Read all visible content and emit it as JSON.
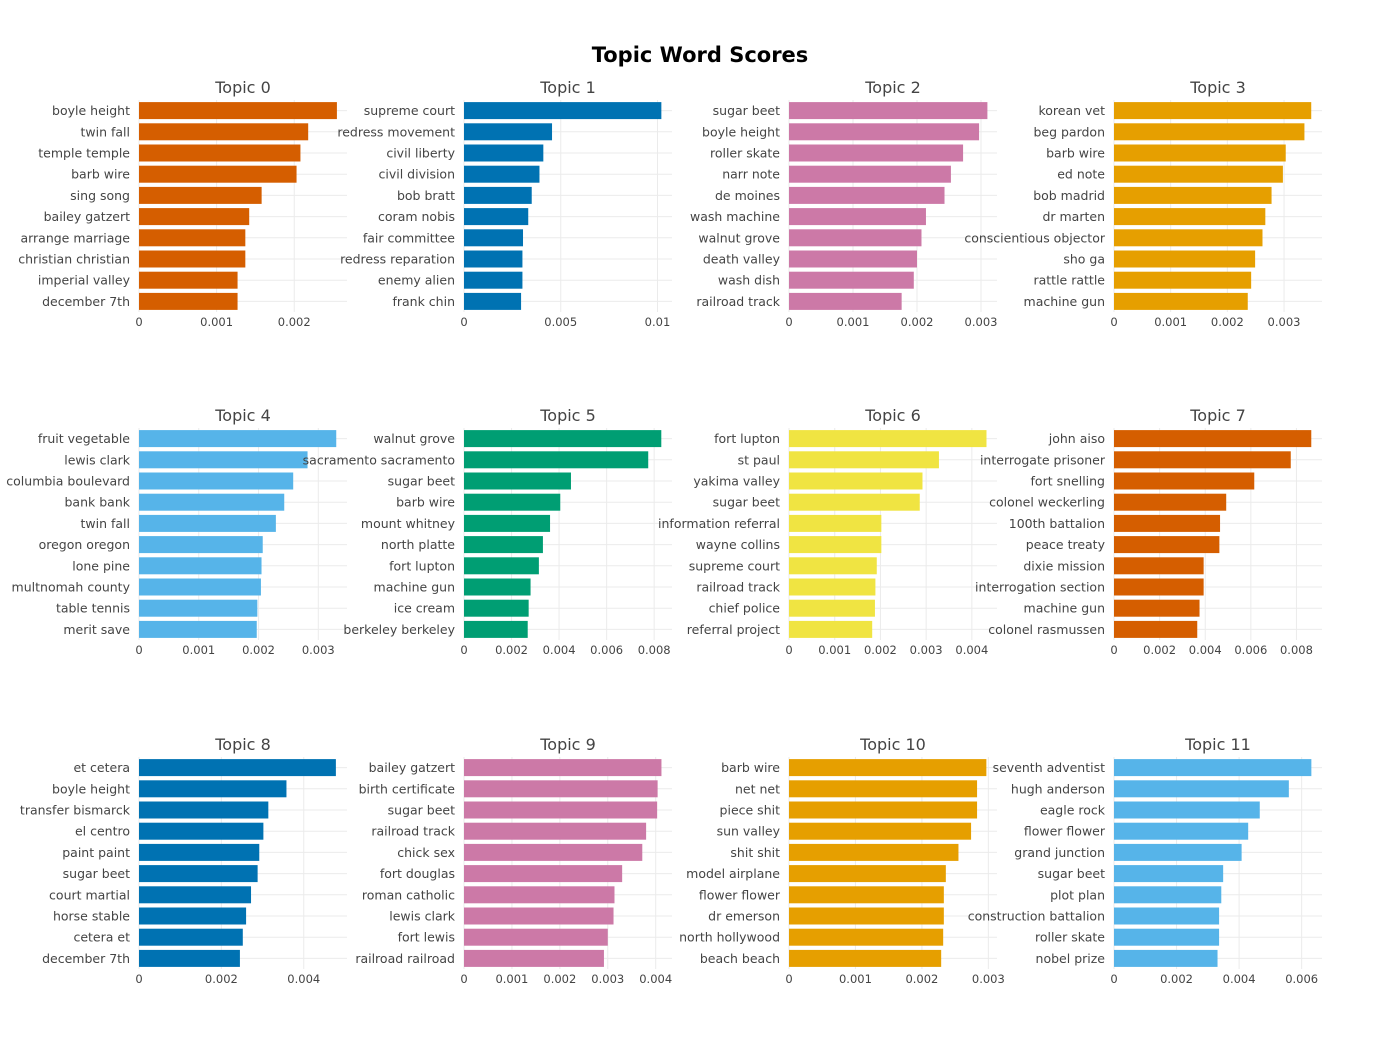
{
  "title": "Topic Word Scores",
  "chart_data": [
    {
      "type": "bar",
      "orientation": "horizontal",
      "title": "Topic 0",
      "color": "#D55E00",
      "categories": [
        "boyle height",
        "twin fall",
        "temple temple",
        "barb wire",
        "sing song",
        "bailey gatzert",
        "arrange marriage",
        "christian christian",
        "imperial valley",
        "december 7th"
      ],
      "values": [
        0.00255,
        0.00218,
        0.00208,
        0.00203,
        0.00158,
        0.00142,
        0.00137,
        0.00137,
        0.00127,
        0.00127
      ],
      "xlim": [
        0,
        0.00268
      ],
      "ticks": [
        0,
        0.001,
        0.002
      ],
      "tick_labels": [
        "0",
        "0.001",
        "0.002"
      ]
    },
    {
      "type": "bar",
      "orientation": "horizontal",
      "title": "Topic 1",
      "color": "#0072B2",
      "categories": [
        "supreme court",
        "redress movement",
        "civil liberty",
        "civil division",
        "bob bratt",
        "coram nobis",
        "fair committee",
        "redress reparation",
        "enemy alien",
        "frank chin"
      ],
      "values": [
        0.0102,
        0.00455,
        0.0041,
        0.0039,
        0.0035,
        0.00332,
        0.00305,
        0.00302,
        0.00302,
        0.00295
      ],
      "xlim": [
        0,
        0.01075
      ],
      "ticks": [
        0,
        0.005,
        0.01
      ],
      "tick_labels": [
        "0",
        "0.005",
        "0.01"
      ]
    },
    {
      "type": "bar",
      "orientation": "horizontal",
      "title": "Topic 2",
      "color": "#CC79A7",
      "categories": [
        "sugar beet",
        "boyle height",
        "roller skate",
        "narr note",
        "de moines",
        "wash machine",
        "walnut grove",
        "death valley",
        "wash dish",
        "railroad track"
      ],
      "values": [
        0.0031,
        0.00297,
        0.00272,
        0.00253,
        0.00243,
        0.00214,
        0.00207,
        0.002,
        0.00195,
        0.00176
      ],
      "xlim": [
        0,
        0.00325
      ],
      "ticks": [
        0,
        0.001,
        0.002,
        0.003
      ],
      "tick_labels": [
        "0",
        "0.001",
        "0.002",
        "0.003"
      ]
    },
    {
      "type": "bar",
      "orientation": "horizontal",
      "title": "Topic 3",
      "color": "#E69F00",
      "categories": [
        "korean vet",
        "beg pardon",
        "barb wire",
        "ed note",
        "bob madrid",
        "dr marten",
        "conscientious objector",
        "sho ga",
        "rattle rattle",
        "machine gun"
      ],
      "values": [
        0.00348,
        0.00336,
        0.00303,
        0.00298,
        0.00278,
        0.00267,
        0.00262,
        0.00249,
        0.00242,
        0.00236
      ],
      "xlim": [
        0,
        0.00367
      ],
      "ticks": [
        0,
        0.001,
        0.002,
        0.003
      ],
      "tick_labels": [
        "0",
        "0.001",
        "0.002",
        "0.003"
      ]
    },
    {
      "type": "bar",
      "orientation": "horizontal",
      "title": "Topic 4",
      "color": "#56B4E9",
      "categories": [
        "fruit vegetable",
        "lewis clark",
        "columbia boulevard",
        "bank bank",
        "twin fall",
        "oregon oregon",
        "lone pine",
        "multnomah county",
        "table tennis",
        "merit save"
      ],
      "values": [
        0.0033,
        0.00282,
        0.00258,
        0.00243,
        0.00229,
        0.00207,
        0.00205,
        0.00204,
        0.00198,
        0.00197
      ],
      "xlim": [
        0,
        0.00348
      ],
      "ticks": [
        0,
        0.001,
        0.002,
        0.003
      ],
      "tick_labels": [
        "0",
        "0.001",
        "0.002",
        "0.003"
      ]
    },
    {
      "type": "bar",
      "orientation": "horizontal",
      "title": "Topic 5",
      "color": "#009E73",
      "categories": [
        "walnut grove",
        "sacramento sacramento",
        "sugar beet",
        "barb wire",
        "mount whitney",
        "north platte",
        "fort lupton",
        "machine gun",
        "ice cream",
        "berkeley berkeley"
      ],
      "values": [
        0.0083,
        0.00775,
        0.0045,
        0.00405,
        0.00362,
        0.00332,
        0.00315,
        0.0028,
        0.00272,
        0.00268
      ],
      "xlim": [
        0,
        0.00875
      ],
      "ticks": [
        0,
        0.002,
        0.004,
        0.006,
        0.008
      ],
      "tick_labels": [
        "0",
        "0.002",
        "0.004",
        "0.006",
        "0.008"
      ]
    },
    {
      "type": "bar",
      "orientation": "horizontal",
      "title": "Topic 6",
      "color": "#F0E442",
      "categories": [
        "fort lupton",
        "st paul",
        "yakima valley",
        "sugar beet",
        "information referral",
        "wayne collins",
        "supreme court",
        "railroad track",
        "chief police",
        "referral project"
      ],
      "values": [
        0.00432,
        0.00328,
        0.00292,
        0.00286,
        0.00202,
        0.00202,
        0.00192,
        0.00189,
        0.00188,
        0.00182
      ],
      "xlim": [
        0,
        0.00455
      ],
      "ticks": [
        0,
        0.001,
        0.002,
        0.003,
        0.004
      ],
      "tick_labels": [
        "0",
        "0.001",
        "0.002",
        "0.003",
        "0.004"
      ]
    },
    {
      "type": "bar",
      "orientation": "horizontal",
      "title": "Topic 7",
      "color": "#D55E00",
      "categories": [
        "john aiso",
        "interrogate prisoner",
        "fort snelling",
        "colonel weckerling",
        "100th battalion",
        "peace treaty",
        "dixie mission",
        "interrogation section",
        "machine gun",
        "colonel rasmussen"
      ],
      "values": [
        0.00865,
        0.00775,
        0.00615,
        0.00492,
        0.00465,
        0.00462,
        0.00393,
        0.00393,
        0.00375,
        0.00365
      ],
      "xlim": [
        0,
        0.00912
      ],
      "ticks": [
        0,
        0.002,
        0.004,
        0.006,
        0.008
      ],
      "tick_labels": [
        "0",
        "0.002",
        "0.004",
        "0.006",
        "0.008"
      ]
    },
    {
      "type": "bar",
      "orientation": "horizontal",
      "title": "Topic 8",
      "color": "#0072B2",
      "categories": [
        "et cetera",
        "boyle height",
        "transfer bismarck",
        "el centro",
        "paint paint",
        "sugar beet",
        "court martial",
        "horse stable",
        "cetera et",
        "december 7th"
      ],
      "values": [
        0.00478,
        0.00358,
        0.00314,
        0.00302,
        0.00292,
        0.00288,
        0.00272,
        0.0026,
        0.00252,
        0.00245
      ],
      "xlim": [
        0,
        0.00505
      ],
      "ticks": [
        0,
        0.002,
        0.004
      ],
      "tick_labels": [
        "0",
        "0.002",
        "0.004"
      ]
    },
    {
      "type": "bar",
      "orientation": "horizontal",
      "title": "Topic 9",
      "color": "#CC79A7",
      "categories": [
        "bailey gatzert",
        "birth certificate",
        "sugar beet",
        "railroad track",
        "chick sex",
        "fort douglas",
        "roman catholic",
        "lewis clark",
        "fort lewis",
        "railroad railroad"
      ],
      "values": [
        0.00412,
        0.00404,
        0.00403,
        0.0038,
        0.00372,
        0.0033,
        0.00314,
        0.00312,
        0.003,
        0.00292
      ],
      "xlim": [
        0,
        0.00434
      ],
      "ticks": [
        0,
        0.001,
        0.002,
        0.003,
        0.004
      ],
      "tick_labels": [
        "0",
        "0.001",
        "0.002",
        "0.003",
        "0.004"
      ]
    },
    {
      "type": "bar",
      "orientation": "horizontal",
      "title": "Topic 10",
      "color": "#E69F00",
      "categories": [
        "barb wire",
        "net net",
        "piece shit",
        "sun valley",
        "shit shit",
        "model airplane",
        "flower flower",
        "dr emerson",
        "north hollywood",
        "beach beach"
      ],
      "values": [
        0.00297,
        0.00283,
        0.00283,
        0.00274,
        0.00255,
        0.00236,
        0.00233,
        0.00233,
        0.00232,
        0.00229
      ],
      "xlim": [
        0,
        0.00313
      ],
      "ticks": [
        0,
        0.001,
        0.002,
        0.003
      ],
      "tick_labels": [
        "0",
        "0.001",
        "0.002",
        "0.003"
      ]
    },
    {
      "type": "bar",
      "orientation": "horizontal",
      "title": "Topic 11",
      "color": "#56B4E9",
      "categories": [
        "seventh adventist",
        "hugh anderson",
        "eagle rock",
        "flower flower",
        "grand junction",
        "sugar beet",
        "plot plan",
        "construction battalion",
        "roller skate",
        "nobel prize"
      ],
      "values": [
        0.00631,
        0.00559,
        0.00466,
        0.00429,
        0.00408,
        0.00349,
        0.00343,
        0.00336,
        0.00336,
        0.00331
      ],
      "xlim": [
        0,
        0.00665
      ],
      "ticks": [
        0,
        0.002,
        0.004,
        0.006
      ],
      "tick_labels": [
        "0",
        "0.002",
        "0.004",
        "0.006"
      ]
    }
  ]
}
